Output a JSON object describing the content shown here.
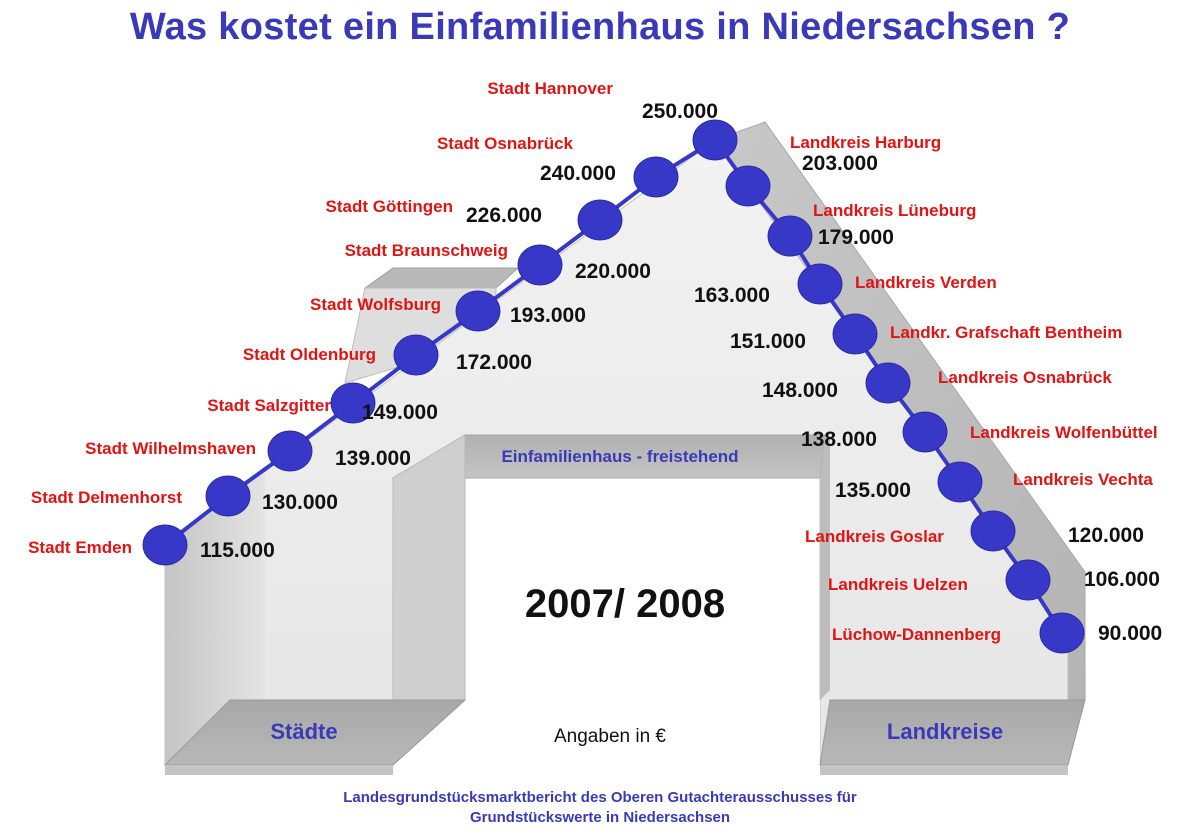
{
  "title": "Was kostet ein Einfamilienhaus in Niedersachsen ?",
  "house_label": "Einfamilienhaus - freistehend",
  "year": "2007/ 2008",
  "unit_note": "Angaben in €",
  "left_base_label": "Städte",
  "right_base_label": "Landkreise",
  "source_line1": "Landesgrundstücksmarktbericht des Oberen Gutachterausschusses für",
  "source_line2": "Grundstückswerte in Niedersachsen",
  "colors": {
    "title": "#3a3ab8",
    "region_label": "#e01414",
    "marker": "#3838c8",
    "roof_wall": "#d8d8d8"
  },
  "chart_data": {
    "type": "line",
    "title": "Was kostet ein Einfamilienhaus in Niedersachsen ?",
    "unit": "€",
    "series": [
      {
        "name": "Städte",
        "points": [
          {
            "label": "Stadt Emden",
            "value": 115000,
            "value_text": "115.000"
          },
          {
            "label": "Stadt Delmenhorst",
            "value": 130000,
            "value_text": "130.000"
          },
          {
            "label": "Stadt Wilhelmshaven",
            "value": 139000,
            "value_text": "139.000"
          },
          {
            "label": "Stadt Salzgitter",
            "value": 149000,
            "value_text": "149.000"
          },
          {
            "label": "Stadt Oldenburg",
            "value": 172000,
            "value_text": "172.000"
          },
          {
            "label": "Stadt Wolfsburg",
            "value": 193000,
            "value_text": "193.000"
          },
          {
            "label": "Stadt Braunschweig",
            "value": 220000,
            "value_text": "220.000"
          },
          {
            "label": "Stadt Göttingen",
            "value": 226000,
            "value_text": "226.000"
          },
          {
            "label": "Stadt Osnabrück",
            "value": 240000,
            "value_text": "240.000"
          },
          {
            "label": "Stadt Hannover",
            "value": 250000,
            "value_text": "250.000"
          }
        ]
      },
      {
        "name": "Landkreise",
        "points": [
          {
            "label": "Landkreis Harburg",
            "value": 203000,
            "value_text": "203.000"
          },
          {
            "label": "Landkreis Lüneburg",
            "value": 179000,
            "value_text": "179.000"
          },
          {
            "label": "Landkreis Verden",
            "value": 163000,
            "value_text": "163.000"
          },
          {
            "label": "Landkr. Grafschaft Bentheim",
            "value": 151000,
            "value_text": "151.000"
          },
          {
            "label": "Landkreis Osnabrück",
            "value": 148000,
            "value_text": "148.000"
          },
          {
            "label": "Landkreis Wolfenbüttel",
            "value": 138000,
            "value_text": "138.000"
          },
          {
            "label": "Landkreis Vechta",
            "value": 135000,
            "value_text": "135.000"
          },
          {
            "label": "Landkreis Goslar",
            "value": 120000,
            "value_text": "120.000"
          },
          {
            "label": "Landkreis Uelzen",
            "value": 106000,
            "value_text": "106.000"
          },
          {
            "label": "Lüchow-Dannenberg",
            "value": 90000,
            "value_text": "90.000"
          }
        ]
      }
    ]
  }
}
